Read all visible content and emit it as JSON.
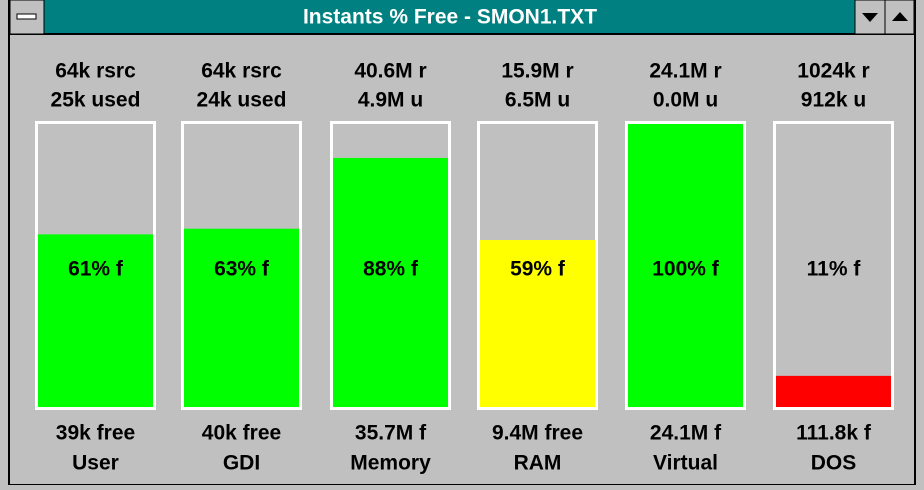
{
  "window": {
    "title": "Instants % Free - SMON1.TXT"
  },
  "gauges": [
    {
      "top1": "64k rsrc",
      "top2": "25k used",
      "value": 61,
      "value_label": "61% f",
      "color": "#00ff00",
      "bottom": "39k free",
      "name": "User"
    },
    {
      "top1": "64k rsrc",
      "top2": "24k used",
      "value": 63,
      "value_label": "63% f",
      "color": "#00ff00",
      "bottom": "40k free",
      "name": "GDI"
    },
    {
      "top1": "40.6M r",
      "top2": "4.9M u",
      "value": 88,
      "value_label": "88% f",
      "color": "#00ff00",
      "bottom": "35.7M f",
      "name": "Memory"
    },
    {
      "top1": "15.9M r",
      "top2": "6.5M u",
      "value": 59,
      "value_label": "59% f",
      "color": "#ffff00",
      "bottom": "9.4M free",
      "name": "RAM"
    },
    {
      "top1": "24.1M r",
      "top2": "0.0M u",
      "value": 100,
      "value_label": "100% f",
      "color": "#00ff00",
      "bottom": "24.1M f",
      "name": "Virtual"
    },
    {
      "top1": "1024k r",
      "top2": "912k u",
      "value": 11,
      "value_label": "11% f",
      "color": "#ff0000",
      "bottom": "111.8k f",
      "name": "DOS"
    }
  ]
}
